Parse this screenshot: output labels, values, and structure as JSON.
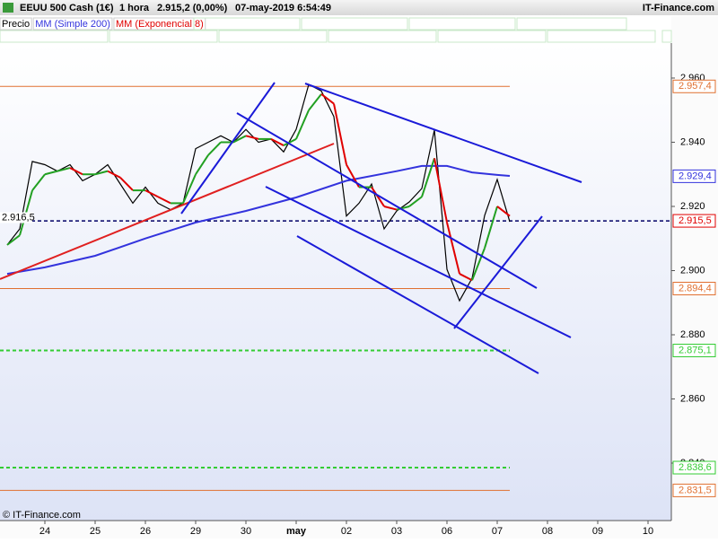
{
  "header": {
    "instrument": "EEUU 500 Cash (1€)",
    "timeframe": "1 hora",
    "last": "2.915,2 (0,00%)",
    "datetime": "07-may-2019 6:54:49",
    "site": "IT-Finance.com"
  },
  "footer": {
    "copyright": "© IT-Finance.com"
  },
  "chart_data": {
    "type": "line",
    "xlim": [
      -0.893,
      12.464
    ],
    "xticks": [
      {
        "value": 0,
        "label": "24"
      },
      {
        "value": 1,
        "label": "25"
      },
      {
        "value": 2,
        "label": "26"
      },
      {
        "value": 3,
        "label": "29"
      },
      {
        "value": 4,
        "label": "30"
      },
      {
        "value": 5,
        "label": "may"
      },
      {
        "value": 6,
        "label": "02"
      },
      {
        "value": 7,
        "label": "03"
      },
      {
        "value": 8,
        "label": "06"
      },
      {
        "value": 9,
        "label": "07"
      },
      {
        "value": 10,
        "label": "08"
      },
      {
        "value": 11,
        "label": "09"
      },
      {
        "value": 12,
        "label": "10"
      }
    ],
    "ylim": [
      2.8221,
      2.9709
    ],
    "yticks": [
      {
        "value": 2.84,
        "label": "2.840"
      },
      {
        "value": 2.86,
        "label": "2.860"
      },
      {
        "value": 2.88,
        "label": "2.880"
      },
      {
        "value": 2.9,
        "label": "2.900"
      },
      {
        "value": 2.92,
        "label": "2.920"
      },
      {
        "value": 2.94,
        "label": "2.940"
      },
      {
        "value": 2.96,
        "label": "2.960"
      }
    ],
    "series": [
      {
        "name": "Precio",
        "color": "#000000",
        "x": [
          -0.75,
          -0.5,
          -0.25,
          0,
          0.25,
          0.5,
          0.75,
          1,
          1.25,
          1.5,
          1.75,
          2,
          2.25,
          2.5,
          2.75,
          3,
          3.25,
          3.5,
          3.75,
          4,
          4.25,
          4.5,
          4.75,
          5,
          5.25,
          5.5,
          5.75,
          6,
          6.25,
          6.5,
          6.75,
          7,
          7.25,
          7.5,
          7.75,
          8,
          8.25,
          8.5,
          8.75,
          9,
          9.25
        ],
        "values": [
          2.908,
          2.913,
          2.934,
          2.933,
          2.931,
          2.933,
          2.928,
          2.93,
          2.933,
          2.927,
          2.921,
          2.926,
          2.921,
          2.919,
          2.921,
          2.938,
          2.94,
          2.942,
          2.94,
          2.944,
          2.94,
          2.941,
          2.937,
          2.944,
          2.958,
          2.956,
          2.948,
          2.917,
          2.921,
          2.927,
          2.913,
          2.9186,
          2.9214,
          2.9256,
          2.9438,
          2.9004,
          2.8906,
          2.8976,
          2.9172,
          2.9284,
          2.9152
        ]
      },
      {
        "name": "MM (Simple 200)",
        "color": "#3333dd",
        "x": [
          -0.75,
          0,
          1,
          2,
          3,
          4,
          5,
          6,
          7,
          7.5,
          8,
          8.5,
          9,
          9.25
        ],
        "values": [
          2.899,
          2.901,
          2.9046,
          2.91,
          2.915,
          2.9186,
          2.9228,
          2.928,
          2.931,
          2.9326,
          2.9326,
          2.9306,
          2.9298,
          2.9295
        ]
      },
      {
        "name": "MM (Exponencial 8)",
        "color": "#e00000",
        "up_color": "#22a022",
        "x": [
          -0.75,
          -0.5,
          -0.25,
          0,
          0.25,
          0.5,
          0.75,
          1,
          1.25,
          1.5,
          1.75,
          2,
          2.25,
          2.5,
          2.75,
          3,
          3.25,
          3.5,
          3.75,
          4,
          4.25,
          4.5,
          4.75,
          5,
          5.25,
          5.5,
          5.75,
          6,
          6.25,
          6.5,
          6.75,
          7,
          7.25,
          7.5,
          7.75,
          8,
          8.25,
          8.5,
          8.75,
          9,
          9.25
        ],
        "values": [
          2.908,
          2.911,
          2.925,
          2.93,
          2.931,
          2.932,
          2.93,
          2.93,
          2.931,
          2.929,
          2.925,
          2.925,
          2.923,
          2.921,
          2.921,
          2.93,
          2.936,
          2.94,
          2.94,
          2.942,
          2.941,
          2.941,
          2.939,
          2.941,
          2.95,
          2.955,
          2.952,
          2.933,
          2.926,
          2.926,
          2.92,
          2.919,
          2.92,
          2.923,
          2.935,
          2.915,
          2.899,
          2.897,
          2.907,
          2.92,
          2.917
        ]
      }
    ],
    "levels": [
      {
        "value": 2.9574,
        "label": "2.957,4",
        "color": "#e07030",
        "line": "solid"
      },
      {
        "value": 2.9294,
        "label": "2.929,4",
        "color": "#3333dd",
        "line": "none"
      },
      {
        "value": 2.9155,
        "label": "2.915,5",
        "color": "#e00000",
        "line": "dashed-full"
      },
      {
        "value": 2.8944,
        "label": "2.894,4",
        "color": "#e07030",
        "line": "solid"
      },
      {
        "value": 2.8751,
        "label": "2.875,1",
        "color": "#33cc33",
        "line": "dashed"
      },
      {
        "value": 2.8386,
        "label": "2.838,6",
        "color": "#33cc33",
        "line": "dashed"
      },
      {
        "value": 2.8315,
        "label": "2.831,5",
        "color": "#e07030",
        "line": "solid"
      }
    ],
    "cursor_label": {
      "value": 2.9165,
      "label": "2.916,5"
    }
  }
}
